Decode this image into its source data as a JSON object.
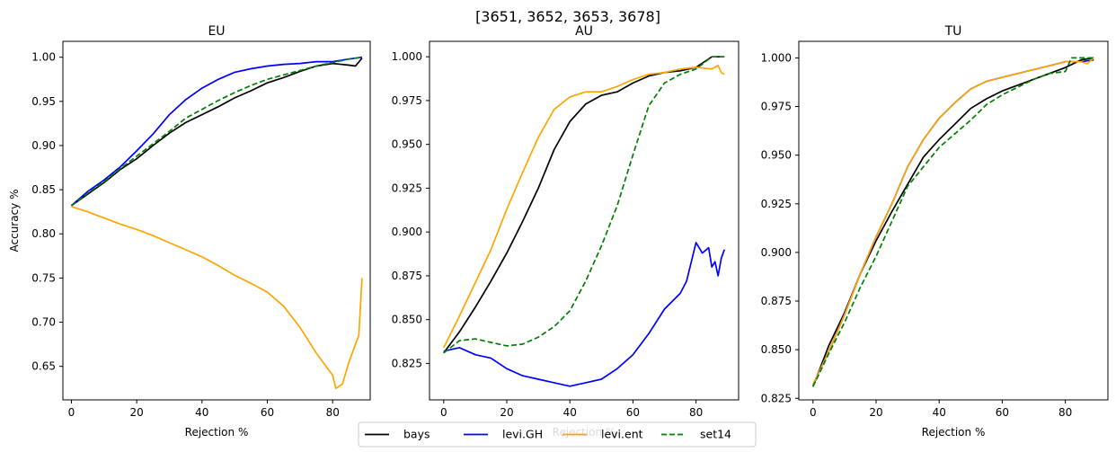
{
  "figure_title": "[3651, 3652, 3653, 3678]",
  "legend_entries": [
    {
      "name": "bays",
      "color": "#000000",
      "dash": false
    },
    {
      "name": "levi.GH",
      "color": "#0000ff",
      "dash": false
    },
    {
      "name": "levi.ent",
      "color": "#ffa500",
      "dash": false
    },
    {
      "name": "set14",
      "color": "#008000",
      "dash": true
    }
  ],
  "chart_data": [
    {
      "type": "line",
      "title": "EU",
      "xlabel": "Rejection %",
      "ylabel": "Accuracy %",
      "xlim": [
        -2.6,
        91.5
      ],
      "ylim": [
        0.612,
        1.018
      ],
      "xticks": [
        0,
        20,
        40,
        60,
        80
      ],
      "yticks": [
        0.65,
        0.7,
        0.75,
        0.8,
        0.85,
        0.9,
        0.95,
        1.0
      ],
      "grid": false,
      "series": [
        {
          "name": "bays",
          "color": "#000000",
          "dash": false,
          "x": [
            0,
            5,
            10,
            15,
            20,
            25,
            30,
            35,
            40,
            45,
            50,
            55,
            60,
            65,
            70,
            75,
            80,
            85,
            87,
            89
          ],
          "y": [
            0.832,
            0.845,
            0.858,
            0.873,
            0.885,
            0.9,
            0.914,
            0.926,
            0.935,
            0.944,
            0.954,
            0.962,
            0.971,
            0.977,
            0.984,
            0.99,
            0.993,
            0.991,
            0.99,
            0.999
          ]
        },
        {
          "name": "levi.GH",
          "color": "#0000ff",
          "dash": false,
          "x": [
            0,
            5,
            10,
            15,
            20,
            25,
            30,
            35,
            40,
            45,
            50,
            55,
            60,
            65,
            70,
            75,
            80,
            85,
            89
          ],
          "y": [
            0.832,
            0.848,
            0.861,
            0.876,
            0.894,
            0.913,
            0.935,
            0.952,
            0.965,
            0.975,
            0.983,
            0.987,
            0.99,
            0.992,
            0.993,
            0.995,
            0.995,
            0.998,
            1.0
          ]
        },
        {
          "name": "levi.ent",
          "color": "#ffa500",
          "dash": false,
          "x": [
            0,
            5,
            10,
            15,
            20,
            25,
            30,
            35,
            40,
            45,
            50,
            55,
            60,
            65,
            70,
            75,
            78,
            80,
            81,
            83,
            85,
            87,
            88,
            89
          ],
          "y": [
            0.831,
            0.825,
            0.818,
            0.811,
            0.805,
            0.798,
            0.79,
            0.782,
            0.774,
            0.764,
            0.753,
            0.744,
            0.734,
            0.718,
            0.694,
            0.665,
            0.65,
            0.64,
            0.625,
            0.63,
            0.655,
            0.675,
            0.685,
            0.75
          ]
        },
        {
          "name": "set14",
          "color": "#008000",
          "dash": true,
          "x": [
            0,
            5,
            10,
            15,
            20,
            25,
            30,
            35,
            40,
            45,
            50,
            55,
            60,
            65,
            70,
            75,
            80,
            85,
            87,
            89
          ],
          "y": [
            0.832,
            0.846,
            0.859,
            0.874,
            0.888,
            0.902,
            0.916,
            0.931,
            0.941,
            0.951,
            0.96,
            0.968,
            0.975,
            0.98,
            0.985,
            0.99,
            0.994,
            0.998,
            0.999,
            1.0
          ]
        }
      ]
    },
    {
      "type": "line",
      "title": "AU",
      "xlabel": "Rejection %",
      "ylabel": "",
      "xlim": [
        -4.5,
        93.5
      ],
      "ylim": [
        0.8042,
        1.0088
      ],
      "xticks": [
        0,
        20,
        40,
        60,
        80
      ],
      "yticks": [
        0.825,
        0.85,
        0.875,
        0.9,
        0.925,
        0.95,
        0.975,
        1.0
      ],
      "grid": false,
      "series": [
        {
          "name": "bays",
          "color": "#000000",
          "dash": false,
          "x": [
            0,
            5,
            10,
            15,
            20,
            25,
            30,
            35,
            40,
            45,
            50,
            55,
            60,
            65,
            70,
            75,
            80,
            85,
            89
          ],
          "y": [
            0.831,
            0.843,
            0.857,
            0.872,
            0.888,
            0.906,
            0.925,
            0.947,
            0.963,
            0.973,
            0.978,
            0.98,
            0.985,
            0.989,
            0.991,
            0.992,
            0.994,
            1.0,
            1.0
          ]
        },
        {
          "name": "levi.GH",
          "color": "#0000ff",
          "dash": false,
          "x": [
            0,
            5,
            10,
            15,
            20,
            25,
            30,
            35,
            40,
            45,
            50,
            55,
            60,
            65,
            70,
            75,
            77,
            80,
            82,
            84,
            85,
            86,
            87,
            88,
            89
          ],
          "y": [
            0.832,
            0.834,
            0.83,
            0.828,
            0.822,
            0.818,
            0.816,
            0.814,
            0.812,
            0.814,
            0.816,
            0.822,
            0.83,
            0.842,
            0.856,
            0.865,
            0.872,
            0.894,
            0.888,
            0.891,
            0.88,
            0.883,
            0.875,
            0.885,
            0.89
          ]
        },
        {
          "name": "levi.ent",
          "color": "#ffa500",
          "dash": false,
          "x": [
            0,
            5,
            10,
            15,
            20,
            25,
            30,
            35,
            40,
            45,
            50,
            55,
            60,
            65,
            70,
            75,
            80,
            85,
            87,
            88,
            89
          ],
          "y": [
            0.834,
            0.852,
            0.871,
            0.89,
            0.913,
            0.934,
            0.954,
            0.97,
            0.977,
            0.98,
            0.98,
            0.983,
            0.987,
            0.99,
            0.991,
            0.993,
            0.994,
            0.993,
            0.995,
            0.991,
            0.99
          ]
        },
        {
          "name": "set14",
          "color": "#008000",
          "dash": true,
          "x": [
            0,
            5,
            10,
            15,
            20,
            25,
            30,
            35,
            40,
            45,
            50,
            55,
            60,
            65,
            70,
            75,
            80,
            85,
            89
          ],
          "y": [
            0.831,
            0.838,
            0.839,
            0.837,
            0.835,
            0.836,
            0.84,
            0.846,
            0.855,
            0.872,
            0.892,
            0.915,
            0.944,
            0.972,
            0.985,
            0.99,
            0.993,
            1.0,
            1.0
          ]
        }
      ]
    },
    {
      "type": "line",
      "title": "TU",
      "xlabel": "Rejection %",
      "ylabel": "",
      "xlim": [
        -4.5,
        93.5
      ],
      "ylim": [
        0.8242,
        1.0085
      ],
      "xticks": [
        0,
        20,
        40,
        60,
        80
      ],
      "yticks": [
        0.825,
        0.85,
        0.875,
        0.9,
        0.925,
        0.95,
        0.975,
        1.0
      ],
      "grid": false,
      "series": [
        {
          "name": "bays",
          "color": "#000000",
          "dash": false,
          "x": [
            0,
            5,
            10,
            15,
            20,
            25,
            30,
            35,
            40,
            45,
            50,
            55,
            60,
            65,
            70,
            75,
            80,
            85,
            89
          ],
          "y": [
            0.831,
            0.852,
            0.869,
            0.889,
            0.906,
            0.921,
            0.935,
            0.949,
            0.958,
            0.966,
            0.974,
            0.979,
            0.983,
            0.986,
            0.989,
            0.992,
            0.995,
            0.999,
            1.0
          ]
        },
        {
          "name": "levi.GH",
          "color": "#0000ff",
          "dash": false,
          "x": [
            0,
            5,
            10,
            15,
            20,
            25,
            30,
            35,
            40,
            45,
            50,
            55,
            60,
            65,
            70,
            75,
            80,
            85,
            89
          ],
          "y": [
            0.832,
            0.849,
            0.868,
            0.889,
            0.908,
            0.925,
            0.944,
            0.958,
            0.969,
            0.977,
            0.984,
            0.988,
            0.99,
            0.992,
            0.994,
            0.996,
            0.998,
            0.998,
            0.999
          ]
        },
        {
          "name": "levi.ent",
          "color": "#ffa500",
          "dash": false,
          "x": [
            0,
            5,
            10,
            15,
            20,
            25,
            30,
            35,
            40,
            45,
            50,
            55,
            60,
            65,
            70,
            75,
            80,
            85,
            87,
            89
          ],
          "y": [
            0.832,
            0.849,
            0.868,
            0.889,
            0.908,
            0.925,
            0.944,
            0.958,
            0.969,
            0.977,
            0.984,
            0.988,
            0.99,
            0.992,
            0.994,
            0.996,
            0.998,
            0.998,
            0.997,
            1.0
          ]
        },
        {
          "name": "set14",
          "color": "#008000",
          "dash": true,
          "x": [
            0,
            5,
            10,
            15,
            20,
            25,
            30,
            35,
            40,
            45,
            50,
            55,
            60,
            65,
            70,
            75,
            80,
            82,
            85,
            89
          ],
          "y": [
            0.831,
            0.848,
            0.864,
            0.882,
            0.898,
            0.916,
            0.934,
            0.944,
            0.954,
            0.961,
            0.968,
            0.976,
            0.981,
            0.985,
            0.989,
            0.992,
            0.993,
            1.0,
            1.0,
            1.0
          ]
        }
      ]
    }
  ]
}
